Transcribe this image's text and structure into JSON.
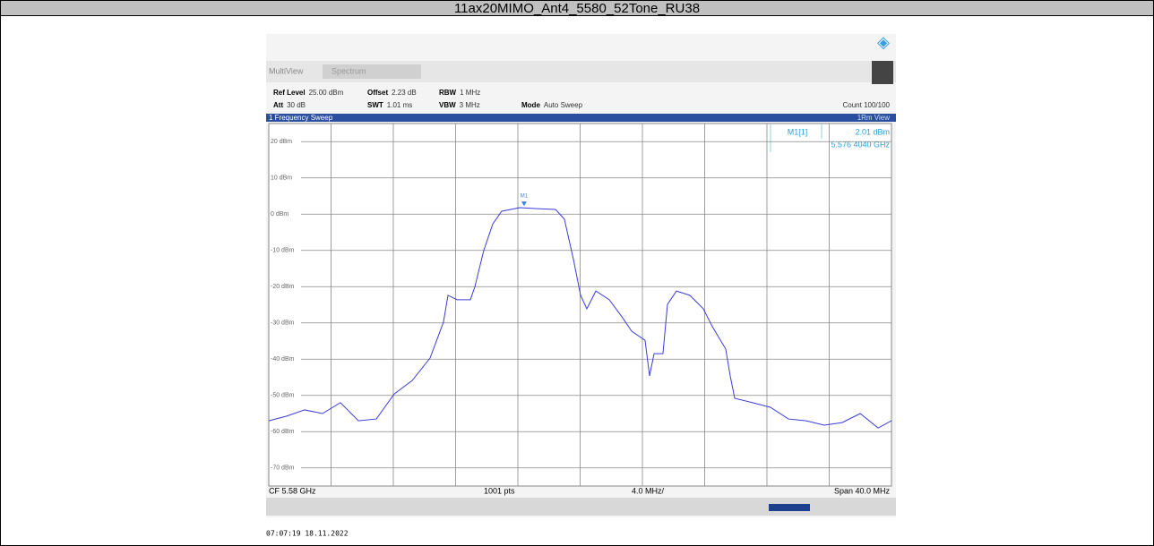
{
  "header": {
    "title": "11ax20MIMO_Ant4_5580_52Tone_RU38"
  },
  "toolbar": {
    "tabs": [
      "MultiView",
      "Spectrum"
    ],
    "row1": [
      [
        "Ref Level",
        "25.00 dBm"
      ],
      [
        "Offset",
        "2.23 dB"
      ],
      [
        "RBW",
        "1 MHz"
      ]
    ],
    "row2": [
      [
        "Att",
        "30 dB"
      ],
      [
        "SWT",
        "1.01 ms"
      ],
      [
        "VBW",
        "3 MHz"
      ],
      [
        "Mode",
        "Auto Sweep"
      ]
    ],
    "count": "Count 100/100"
  },
  "chart_data": {
    "type": "line",
    "title": "1 Frequency Sweep",
    "view": "1Rm View",
    "color": "#3c3cd8",
    "x": [
      5.56,
      5.56115,
      5.5623,
      5.56345,
      5.5646,
      5.56576,
      5.56691,
      5.56806,
      5.56921,
      5.57036,
      5.57122,
      5.57151,
      5.57209,
      5.57295,
      5.57324,
      5.57381,
      5.57439,
      5.57496,
      5.57612,
      5.57727,
      5.57842,
      5.57899,
      5.57957,
      5.58003,
      5.58043,
      5.58101,
      5.58187,
      5.58273,
      5.58331,
      5.58417,
      5.58446,
      5.58475,
      5.58532,
      5.58561,
      5.58619,
      5.58705,
      5.58791,
      5.58849,
      5.58935,
      5.58964,
      5.58993,
      5.59108,
      5.59223,
      5.59338,
      5.59453,
      5.59568,
      5.59683,
      5.59799,
      5.59914,
      5.6
    ],
    "values": [
      -57,
      -55.7,
      -54,
      -55,
      -52,
      -57,
      -56.5,
      -49.6,
      -45.9,
      -39.7,
      -29.8,
      -22.4,
      -23.6,
      -23.6,
      -20,
      -10,
      -2.7,
      0.8,
      1.8,
      1.5,
      1.3,
      -1.4,
      -12.5,
      -22.4,
      -26.1,
      -21.2,
      -23.6,
      -28.6,
      -32.3,
      -34.8,
      -44.6,
      -38.5,
      -38.5,
      -24.9,
      -21.2,
      -22.4,
      -26.1,
      -31,
      -37.2,
      -44.6,
      -50.8,
      -52,
      -53.3,
      -56.5,
      -57,
      -58.2,
      -57.5,
      -55,
      -59,
      -57
    ],
    "xlim": [
      5.56,
      5.6
    ],
    "ylim": [
      -75,
      25
    ],
    "yticks": [
      {
        "value": 20,
        "label": "20 dBm"
      },
      {
        "value": 10,
        "label": "10 dBm"
      },
      {
        "value": 0,
        "label": "0 dBm"
      },
      {
        "value": -10,
        "label": "-10 dBm"
      },
      {
        "value": -20,
        "label": "-20 dBm"
      },
      {
        "value": -30,
        "label": "-30 dBm"
      },
      {
        "value": -40,
        "label": "-40 dBm"
      },
      {
        "value": -50,
        "label": "-50 dBm"
      },
      {
        "value": -60,
        "label": "-60 dBm"
      },
      {
        "value": -70,
        "label": "-70 dBm"
      }
    ],
    "grid": true,
    "marker": {
      "label": "M1",
      "x": 5.5764,
      "y": 2.01
    },
    "readout": {
      "name": "M1[1]",
      "level": "2.01 dBm",
      "freq": "5.576 4040 GHz"
    },
    "footer": {
      "center": "CF 5.58 GHz",
      "points": "1001 pts",
      "div": "4.0 MHz/",
      "span": "Span 40.0 MHz"
    }
  },
  "timestamp": "07:07:19  18.11.2022"
}
